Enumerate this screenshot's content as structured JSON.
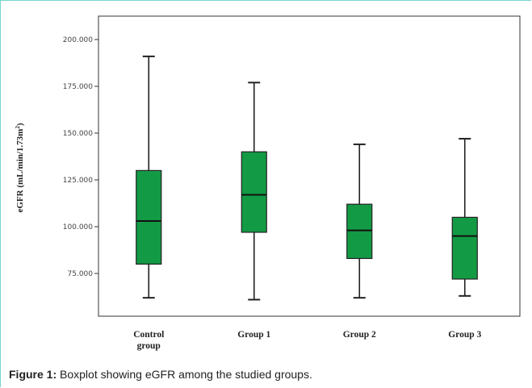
{
  "chart_data": {
    "type": "box",
    "ylabel": "eGFR (mL/min/1.73m²)",
    "ylim": [
      50,
      205
    ],
    "yticks": [
      "200.000",
      "175.000",
      "150.000",
      "125.000",
      "100.000",
      "75.000"
    ],
    "ytick_values": [
      200,
      175,
      150,
      125,
      100,
      75
    ],
    "categories": [
      "Control group",
      "Group 1",
      "Group 2",
      "Group 3"
    ],
    "boxes": [
      {
        "category": "Control group",
        "min": 62,
        "q1": 80,
        "median": 103,
        "q3": 130,
        "max": 191
      },
      {
        "category": "Group 1",
        "min": 61,
        "q1": 97,
        "median": 117,
        "q3": 140,
        "max": 177
      },
      {
        "category": "Group 2",
        "min": 62,
        "q1": 83,
        "median": 98,
        "q3": 112,
        "max": 144
      },
      {
        "category": "Group 3",
        "min": 63,
        "q1": 72,
        "median": 95,
        "q3": 105,
        "max": 147
      }
    ],
    "box_color": "#139a45"
  },
  "caption": {
    "label": "Figure 1:",
    "text": " Boxplot showing eGFR among the studied groups."
  }
}
